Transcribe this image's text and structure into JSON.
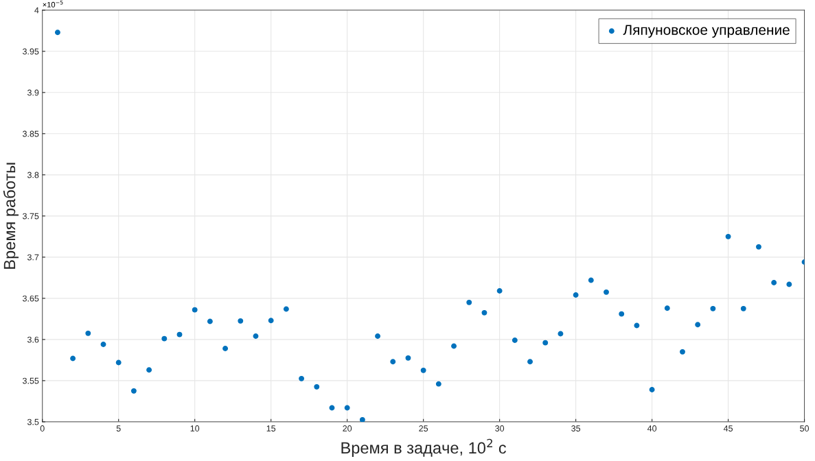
{
  "chart_data": {
    "type": "scatter",
    "xlabel": "Время в задаче, 10$^{2}$ с",
    "ylabel": "Время работы",
    "annotations": [
      "×10$^{−5}$"
    ],
    "x": [
      1,
      2,
      3,
      4,
      5,
      6,
      7,
      8,
      9,
      10,
      11,
      12,
      13,
      14,
      15,
      16,
      17,
      18,
      19,
      20,
      21,
      22,
      23,
      24,
      25,
      26,
      27,
      28,
      29,
      30,
      31,
      32,
      33,
      34,
      35,
      36,
      37,
      38,
      39,
      40,
      41,
      42,
      43,
      44,
      45,
      46,
      47,
      48,
      49,
      50
    ],
    "series": [
      {
        "name": "Ляпуновское управление",
        "color": "#0072bd",
        "values": [
          3.973,
          3.577,
          3.6075,
          3.594,
          3.572,
          3.5375,
          3.563,
          3.601,
          3.606,
          3.636,
          3.622,
          3.589,
          3.6225,
          3.604,
          3.623,
          3.637,
          3.5525,
          3.5425,
          3.517,
          3.517,
          3.5025,
          3.604,
          3.573,
          3.5775,
          3.5625,
          3.546,
          3.592,
          3.645,
          3.6325,
          3.659,
          3.599,
          3.573,
          3.596,
          3.607,
          3.654,
          3.672,
          3.6575,
          3.631,
          3.617,
          3.539,
          3.638,
          3.585,
          3.618,
          3.6375,
          3.725,
          3.6375,
          3.7125,
          3.669,
          3.667,
          3.694
        ]
      }
    ],
    "xlim": [
      0,
      50
    ],
    "xticks": [
      0,
      5,
      10,
      15,
      20,
      25,
      30,
      35,
      40,
      45,
      50
    ],
    "ylim": [
      3.5,
      4
    ],
    "yticks": [
      3.5,
      3.55,
      3.6,
      3.65,
      3.7,
      3.75,
      3.8,
      3.85,
      3.9,
      3.95,
      4
    ],
    "grid": true,
    "legend": "top right",
    "marker": "circle"
  }
}
